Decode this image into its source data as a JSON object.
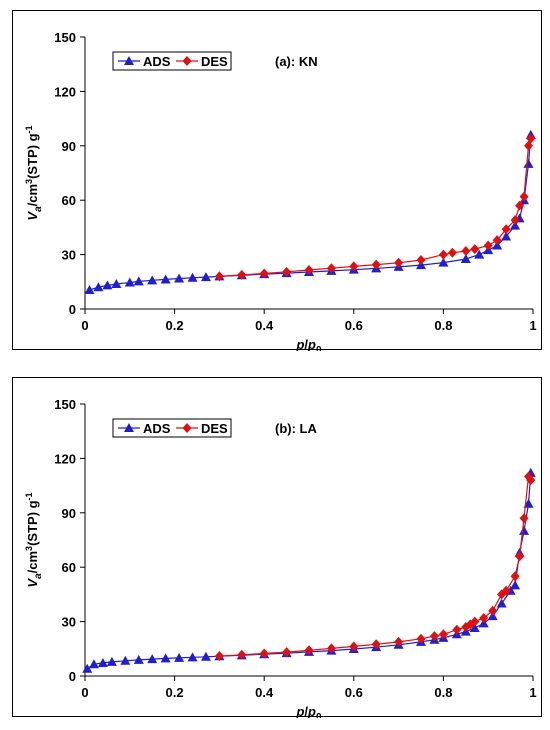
{
  "chart_data": [
    {
      "type": "line",
      "title": "(a): KN",
      "xlabel": "p/p0",
      "ylabel": "Va/cm3(STP) g-1",
      "xlim": [
        0,
        1
      ],
      "ylim": [
        0,
        150
      ],
      "xticks": [
        "0",
        "0.2",
        "0.4",
        "0.6",
        "0.8",
        "1"
      ],
      "yticks": [
        "0",
        "30",
        "60",
        "90",
        "120",
        "150"
      ],
      "legend": "top-left",
      "grid": false,
      "series": [
        {
          "name": "ADS",
          "color": "#1f1fd0",
          "marker": "triangle",
          "points": [
            [
              0.01,
              10.5
            ],
            [
              0.03,
              12
            ],
            [
              0.05,
              13
            ],
            [
              0.07,
              13.8
            ],
            [
              0.1,
              14.6
            ],
            [
              0.12,
              15.2
            ],
            [
              0.15,
              15.8
            ],
            [
              0.18,
              16.3
            ],
            [
              0.21,
              16.8
            ],
            [
              0.24,
              17.2
            ],
            [
              0.27,
              17.6
            ],
            [
              0.3,
              18.0
            ],
            [
              0.35,
              18.6
            ],
            [
              0.4,
              19.2
            ],
            [
              0.45,
              19.8
            ],
            [
              0.5,
              20.4
            ],
            [
              0.55,
              21.0
            ],
            [
              0.6,
              21.7
            ],
            [
              0.65,
              22.4
            ],
            [
              0.7,
              23.2
            ],
            [
              0.75,
              24.2
            ],
            [
              0.8,
              25.6
            ],
            [
              0.85,
              27.6
            ],
            [
              0.88,
              30
            ],
            [
              0.9,
              32.5
            ],
            [
              0.92,
              35
            ],
            [
              0.94,
              40
            ],
            [
              0.96,
              46
            ],
            [
              0.97,
              50
            ],
            [
              0.98,
              60
            ],
            [
              0.99,
              80
            ],
            [
              0.995,
              96
            ]
          ]
        },
        {
          "name": "DES",
          "color": "#e01010",
          "marker": "diamond",
          "points": [
            [
              0.995,
              94
            ],
            [
              0.99,
              90
            ],
            [
              0.98,
              62
            ],
            [
              0.97,
              57
            ],
            [
              0.96,
              49
            ],
            [
              0.94,
              44
            ],
            [
              0.92,
              38
            ],
            [
              0.9,
              35
            ],
            [
              0.87,
              33
            ],
            [
              0.85,
              32
            ],
            [
              0.82,
              31
            ],
            [
              0.8,
              30
            ],
            [
              0.75,
              27
            ],
            [
              0.7,
              25.5
            ],
            [
              0.65,
              24.5
            ],
            [
              0.6,
              23.5
            ],
            [
              0.55,
              22.5
            ],
            [
              0.5,
              21.5
            ],
            [
              0.45,
              20.5
            ],
            [
              0.4,
              19.6
            ],
            [
              0.35,
              18.8
            ],
            [
              0.3,
              18.0
            ]
          ]
        }
      ]
    },
    {
      "type": "line",
      "title": "(b): LA",
      "xlabel": "p/p0",
      "ylabel": "Va/cm3(STP) g-1",
      "xlim": [
        0,
        1
      ],
      "ylim": [
        0,
        150
      ],
      "xticks": [
        "0",
        "0.2",
        "0.4",
        "0.6",
        "0.8",
        "1"
      ],
      "yticks": [
        "0",
        "30",
        "60",
        "90",
        "120",
        "150"
      ],
      "legend": "top-left",
      "grid": false,
      "series": [
        {
          "name": "ADS",
          "color": "#1f1fd0",
          "marker": "triangle",
          "points": [
            [
              0.005,
              4
            ],
            [
              0.02,
              6.5
            ],
            [
              0.04,
              7.2
            ],
            [
              0.06,
              7.8
            ],
            [
              0.09,
              8.4
            ],
            [
              0.12,
              8.9
            ],
            [
              0.15,
              9.3
            ],
            [
              0.18,
              9.7
            ],
            [
              0.21,
              10.0
            ],
            [
              0.24,
              10.3
            ],
            [
              0.27,
              10.6
            ],
            [
              0.3,
              10.9
            ],
            [
              0.35,
              11.4
            ],
            [
              0.4,
              12.0
            ],
            [
              0.45,
              12.6
            ],
            [
              0.5,
              13.3
            ],
            [
              0.55,
              14.0
            ],
            [
              0.6,
              14.9
            ],
            [
              0.65,
              15.9
            ],
            [
              0.7,
              17.2
            ],
            [
              0.75,
              18.8
            ],
            [
              0.78,
              20
            ],
            [
              0.8,
              21
            ],
            [
              0.83,
              23
            ],
            [
              0.85,
              24.5
            ],
            [
              0.87,
              26.5
            ],
            [
              0.89,
              29
            ],
            [
              0.91,
              33
            ],
            [
              0.93,
              40
            ],
            [
              0.95,
              47
            ],
            [
              0.96,
              50
            ],
            [
              0.97,
              68
            ],
            [
              0.98,
              80
            ],
            [
              0.99,
              95
            ],
            [
              0.995,
              112
            ]
          ]
        },
        {
          "name": "DES",
          "color": "#e01010",
          "marker": "diamond",
          "points": [
            [
              0.995,
              108
            ],
            [
              0.99,
              110
            ],
            [
              0.98,
              87
            ],
            [
              0.97,
              66
            ],
            [
              0.96,
              55
            ],
            [
              0.94,
              47
            ],
            [
              0.93,
              45
            ],
            [
              0.91,
              36
            ],
            [
              0.89,
              32
            ],
            [
              0.87,
              30
            ],
            [
              0.86,
              28.5
            ],
            [
              0.85,
              27
            ],
            [
              0.83,
              25.5
            ],
            [
              0.8,
              23
            ],
            [
              0.78,
              22
            ],
            [
              0.75,
              20.5
            ],
            [
              0.7,
              18.8
            ],
            [
              0.65,
              17.5
            ],
            [
              0.6,
              16.3
            ],
            [
              0.55,
              15.2
            ],
            [
              0.5,
              14.2
            ],
            [
              0.45,
              13.2
            ],
            [
              0.4,
              12.4
            ],
            [
              0.35,
              11.7
            ],
            [
              0.3,
              11.0
            ]
          ]
        }
      ]
    }
  ]
}
